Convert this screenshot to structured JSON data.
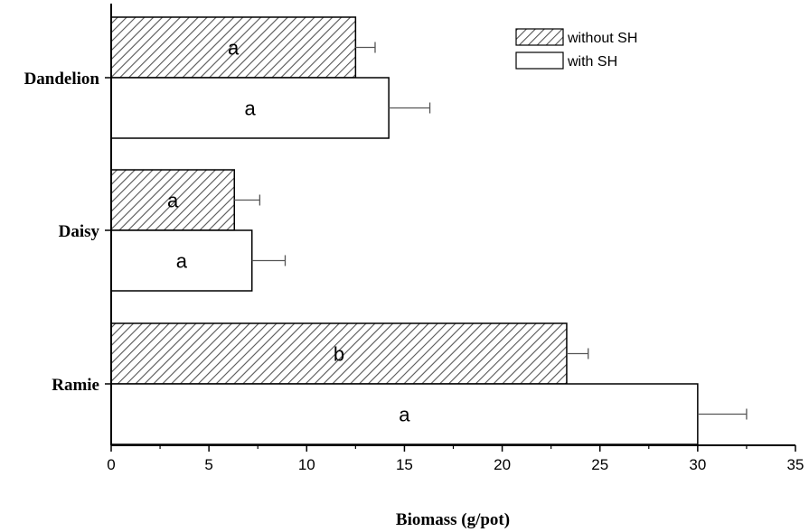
{
  "chart_data": {
    "type": "bar",
    "orientation": "horizontal",
    "categories": [
      "Dandelion",
      "Daisy",
      "Ramie"
    ],
    "series": [
      {
        "name": "without SH",
        "pattern": "hatched",
        "values": [
          12.5,
          6.3,
          23.3
        ],
        "errors": [
          1.0,
          1.3,
          1.1
        ],
        "significance": [
          "a",
          "a",
          "b"
        ]
      },
      {
        "name": "with SH",
        "pattern": "open",
        "values": [
          14.2,
          7.2,
          30.0
        ],
        "errors": [
          2.1,
          1.7,
          2.5
        ],
        "significance": [
          "a",
          "a",
          "a"
        ]
      }
    ],
    "xlabel": "Biomass (g/pot)",
    "ylabel": "",
    "xlim": [
      0,
      35
    ],
    "xticks": [
      "0",
      "5",
      "10",
      "15",
      "20",
      "25",
      "30",
      "35"
    ],
    "grid": false,
    "legend_position": "top-right",
    "colors": {
      "hatch": "#555555",
      "bar_edge": "#000000",
      "background": "#ffffff"
    }
  }
}
